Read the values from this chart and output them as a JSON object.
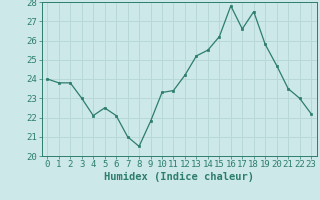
{
  "x": [
    0,
    1,
    2,
    3,
    4,
    5,
    6,
    7,
    8,
    9,
    10,
    11,
    12,
    13,
    14,
    15,
    16,
    17,
    18,
    19,
    20,
    21,
    22,
    23
  ],
  "y": [
    24.0,
    23.8,
    23.8,
    23.0,
    22.1,
    22.5,
    22.1,
    21.0,
    20.5,
    21.8,
    23.3,
    23.4,
    24.2,
    25.2,
    25.5,
    26.2,
    27.8,
    26.6,
    27.5,
    25.8,
    24.7,
    23.5,
    23.0,
    22.2
  ],
  "line_color": "#2d7d6e",
  "marker_color": "#2d7d6e",
  "bg_color": "#cce8e8",
  "grid_color": "#b8d8d8",
  "xlabel": "Humidex (Indice chaleur)",
  "ylim": [
    20,
    28
  ],
  "yticks": [
    20,
    21,
    22,
    23,
    24,
    25,
    26,
    27,
    28
  ],
  "xticks": [
    0,
    1,
    2,
    3,
    4,
    5,
    6,
    7,
    8,
    9,
    10,
    11,
    12,
    13,
    14,
    15,
    16,
    17,
    18,
    19,
    20,
    21,
    22,
    23
  ],
  "label_fontsize": 7.5,
  "tick_fontsize": 6.5
}
